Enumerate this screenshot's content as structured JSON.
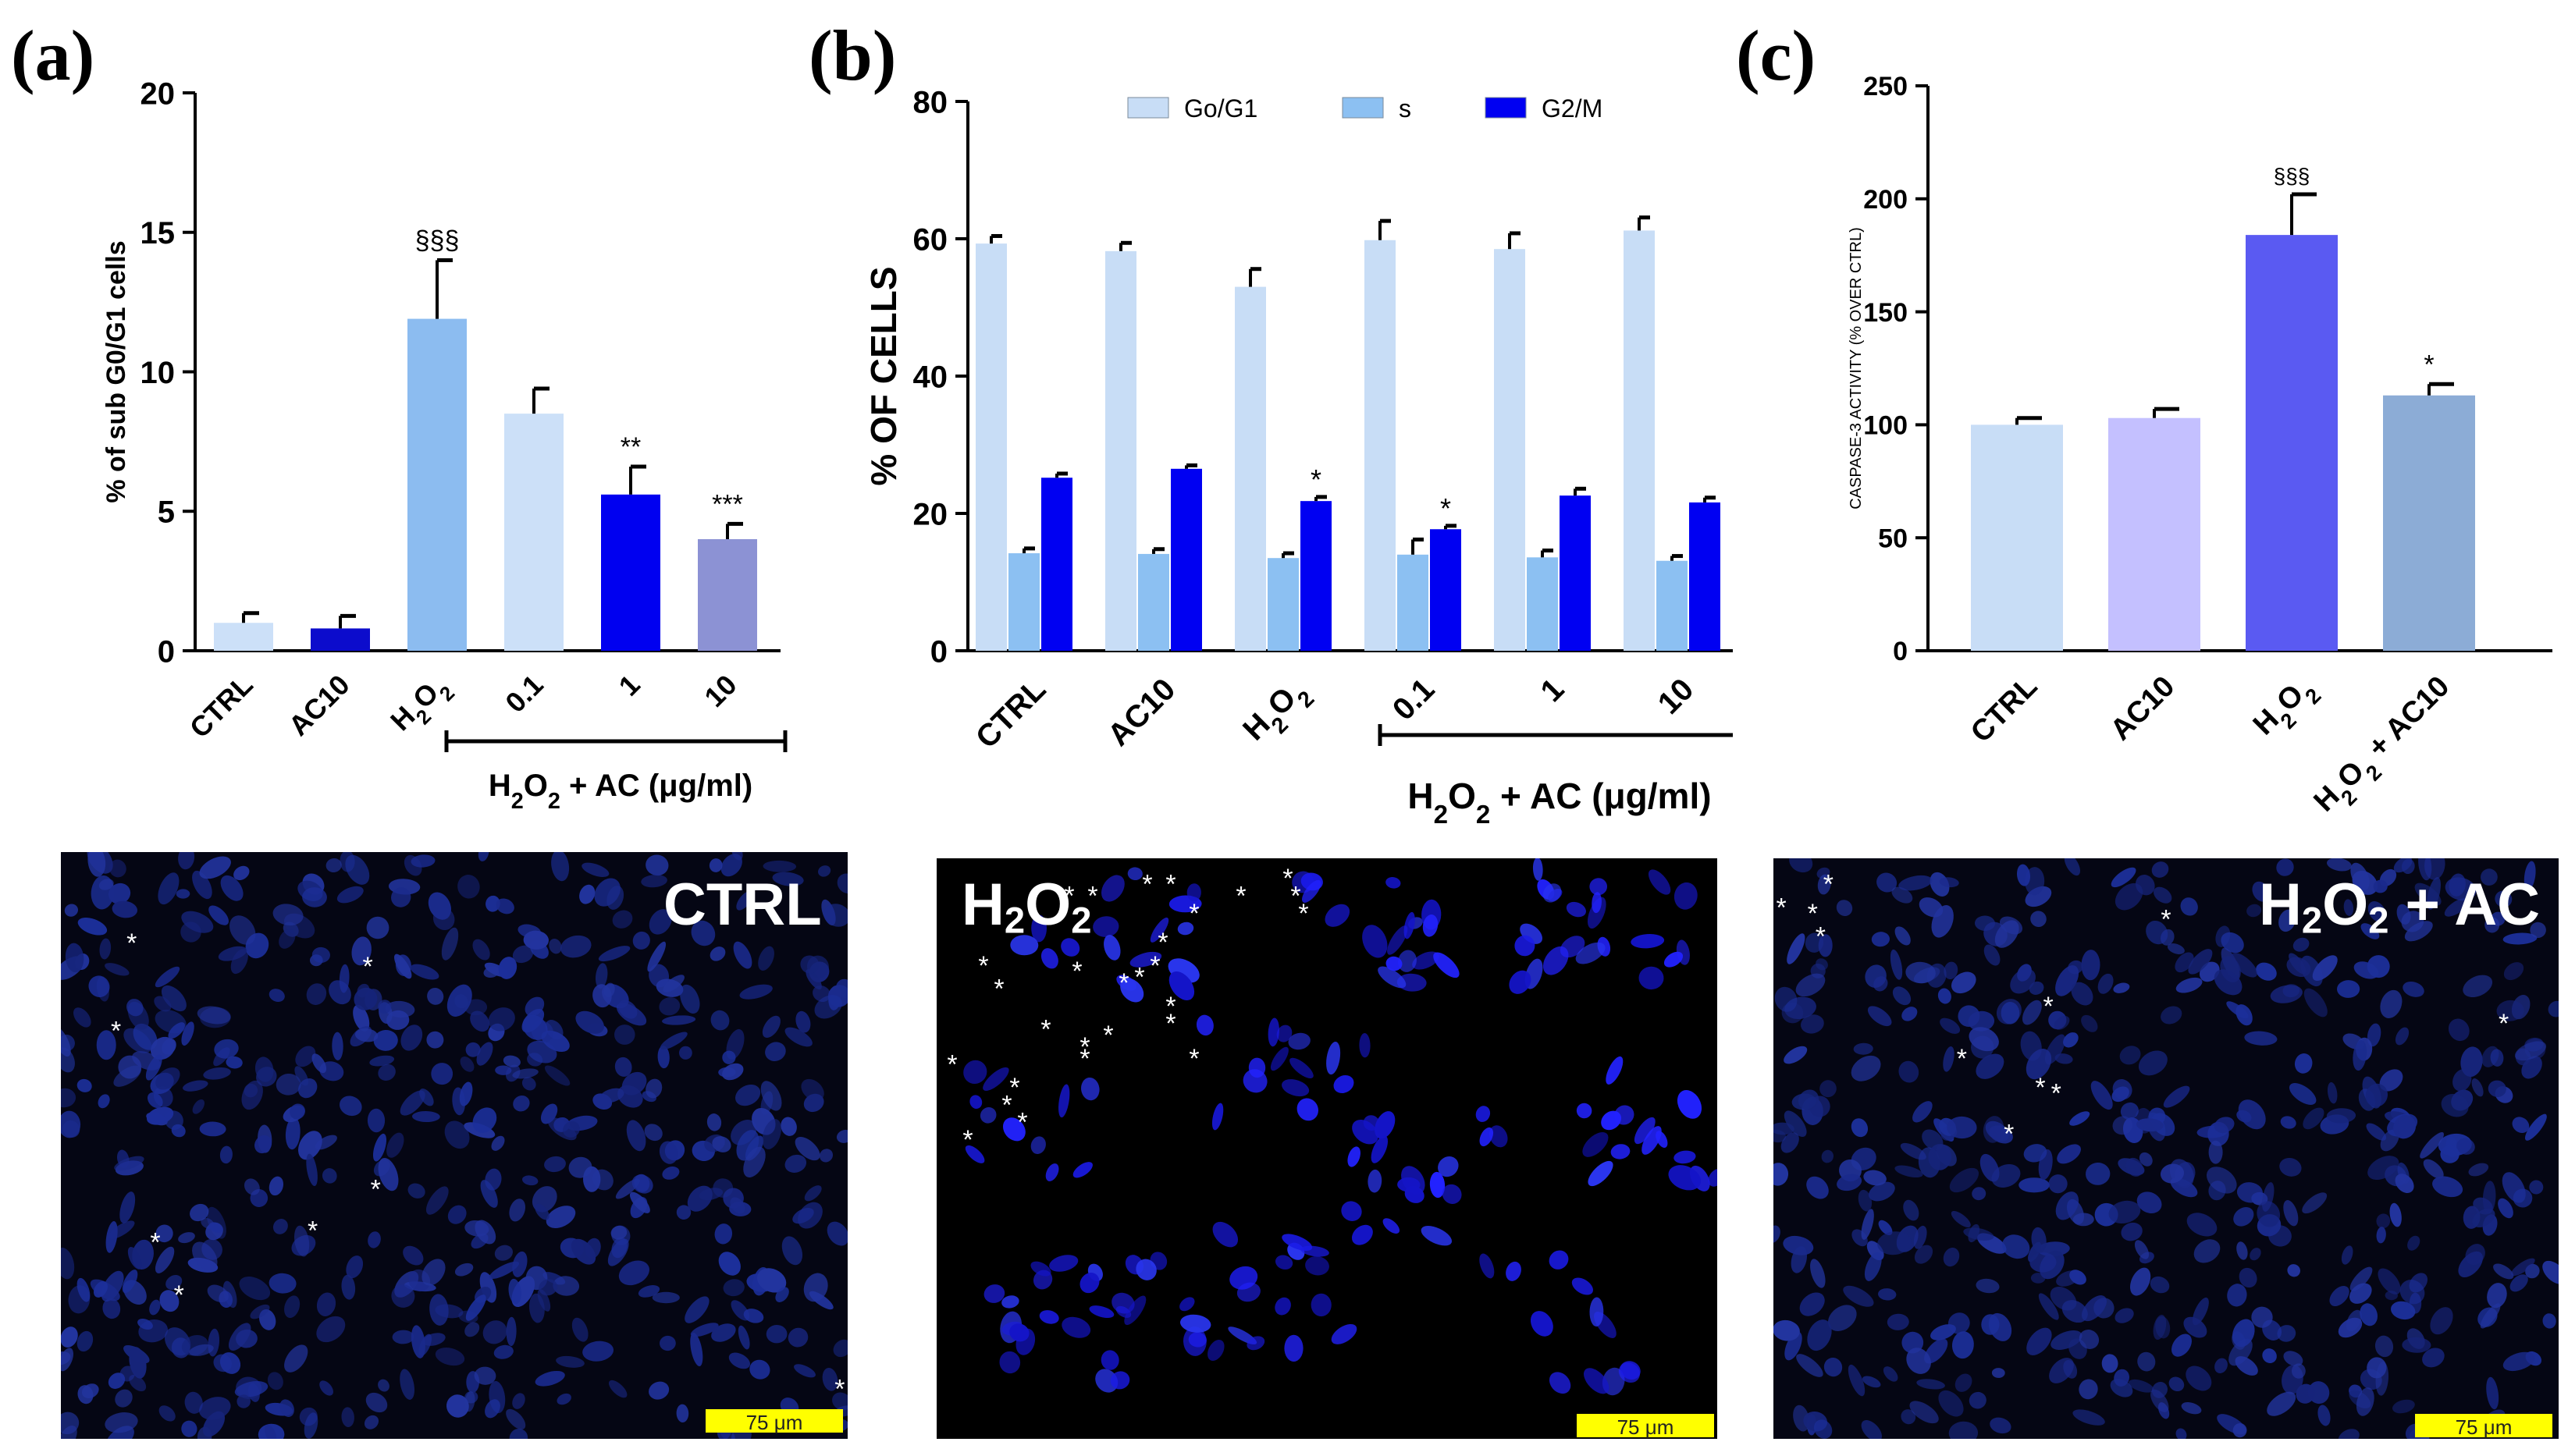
{
  "panels": {
    "a": {
      "letter": "(a)"
    },
    "b": {
      "letter": "(b)"
    },
    "c": {
      "letter": "(c)"
    }
  },
  "chart_data": [
    {
      "id": "a",
      "type": "bar",
      "ylabel": "% of sub G0/G1  cells",
      "ylim": [
        0,
        20
      ],
      "yticks": [
        0,
        5,
        10,
        15,
        20
      ],
      "categories": [
        "CTRL",
        "AC10",
        "H2O2",
        "0.1",
        "1",
        "10"
      ],
      "values": [
        1.0,
        0.8,
        11.9,
        8.5,
        5.6,
        4.0
      ],
      "errors": [
        0.35,
        0.45,
        2.1,
        0.9,
        1.0,
        0.55
      ],
      "colors": [
        "#cce0f8",
        "#0c0ccc",
        "#8cbcf0",
        "#cce0f8",
        "#0000f0",
        "#8c92d4"
      ],
      "annotations": [
        "",
        "",
        "§§§",
        "",
        "**",
        "***"
      ],
      "group_label": {
        "prefix": "H",
        "sub1": "2",
        "mid": "O",
        "sub2": "2",
        "suffix": " + AC (μg/ml)"
      }
    },
    {
      "id": "b",
      "type": "bar",
      "ylabel": "% OF  CELLS",
      "ylim": [
        0,
        80
      ],
      "yticks": [
        0,
        20,
        40,
        60,
        80
      ],
      "categories": [
        "CTRL",
        "AC10",
        "H2O2",
        "0.1",
        "1",
        "10"
      ],
      "series": [
        {
          "name": "Go/G1",
          "color": "#c8ddf6",
          "values": [
            59.3,
            58.2,
            53.0,
            59.8,
            58.5,
            61.2
          ],
          "errors": [
            1.1,
            1.2,
            2.6,
            2.8,
            2.3,
            1.9
          ]
        },
        {
          "name": "s",
          "color": "#8cc0f2",
          "values": [
            14.2,
            14.1,
            13.5,
            14.0,
            13.6,
            13.1
          ],
          "errors": [
            0.7,
            0.7,
            0.7,
            2.2,
            1.0,
            0.7
          ]
        },
        {
          "name": "G2/M",
          "color": "#0000f2",
          "values": [
            25.2,
            26.5,
            21.8,
            17.7,
            22.6,
            21.6
          ],
          "errors": [
            0.6,
            0.5,
            0.6,
            0.5,
            1.0,
            0.7
          ]
        }
      ],
      "annotations": [
        "",
        "",
        "*",
        "*",
        "",
        ""
      ],
      "group_label": {
        "prefix": "H",
        "sub1": "2",
        "mid": "O",
        "sub2": "2",
        "suffix": " + AC (μg/ml)"
      }
    },
    {
      "id": "c",
      "type": "bar",
      "ylabel": "CASPASE-3 ACTIVITY (% OVER CTRL)",
      "ylim": [
        0,
        250
      ],
      "yticks": [
        0,
        50,
        100,
        150,
        200,
        250
      ],
      "categories": [
        "CTRL",
        "AC10",
        "H2O2",
        "H2O2 + AC10"
      ],
      "values": [
        100,
        103,
        184,
        113
      ],
      "errors": [
        3,
        4,
        18,
        5
      ],
      "colors": [
        "#c8ddf6",
        "#c4c0ff",
        "#5a5af2",
        "#8cacd6"
      ],
      "annotations": [
        "",
        "",
        "§§§",
        "*"
      ]
    }
  ],
  "micrographs": [
    {
      "label": "CTRL",
      "scale_bar": "75 μm"
    },
    {
      "label": "H2O2",
      "scale_bar": "75 μm"
    },
    {
      "label": "H2O2 + AC",
      "scale_bar": "75 μm"
    }
  ]
}
